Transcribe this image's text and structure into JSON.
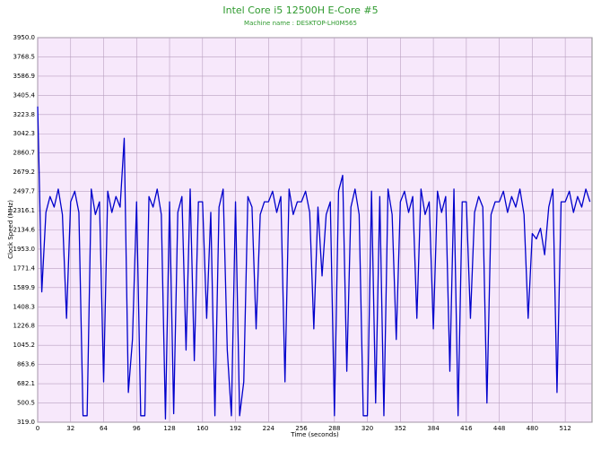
{
  "chart_data": {
    "type": "line",
    "title": "Intel Core i5 12500H E-Core #5",
    "subtitle": "Machine name : DESKTOP-LH0M565",
    "xlabel": "Time (seconds)",
    "ylabel": "Clock Speed (MHz)",
    "grid": true,
    "xlim": [
      0,
      538
    ],
    "ylim": [
      319,
      3950
    ],
    "xticks": [
      0,
      32,
      64,
      96,
      128,
      160,
      192,
      224,
      256,
      288,
      320,
      352,
      384,
      416,
      448,
      480,
      512
    ],
    "yticks": [
      {
        "value": 319,
        "label": "319.0"
      },
      500.5,
      682.1,
      863.6,
      1045.2,
      1226.8,
      1408.3,
      1589.9,
      1771.4,
      {
        "value": 1953,
        "label": "1953.0"
      },
      2134.6,
      2316.1,
      2497.7,
      2679.2,
      2860.7,
      3042.3,
      3223.8,
      3405.4,
      3586.9,
      3768.5,
      {
        "value": 3950,
        "label": "3950.0"
      }
    ],
    "x": [
      0,
      4,
      8,
      12,
      16,
      20,
      24,
      28,
      32,
      36,
      40,
      44,
      48,
      52,
      56,
      60,
      64,
      68,
      72,
      76,
      80,
      84,
      88,
      92,
      96,
      100,
      104,
      108,
      112,
      116,
      120,
      124,
      128,
      132,
      136,
      140,
      144,
      148,
      152,
      156,
      160,
      164,
      168,
      172,
      176,
      180,
      184,
      188,
      192,
      196,
      200,
      204,
      208,
      212,
      216,
      220,
      224,
      228,
      232,
      236,
      240,
      244,
      248,
      252,
      256,
      260,
      264,
      268,
      272,
      276,
      280,
      284,
      288,
      292,
      296,
      300,
      304,
      308,
      312,
      316,
      320,
      324,
      328,
      332,
      336,
      340,
      344,
      348,
      352,
      356,
      360,
      364,
      368,
      372,
      376,
      380,
      384,
      388,
      392,
      396,
      400,
      404,
      408,
      412,
      416,
      420,
      424,
      428,
      432,
      436,
      440,
      444,
      448,
      452,
      456,
      460,
      464,
      468,
      472,
      476,
      480,
      484,
      488,
      492,
      496,
      500,
      504,
      508,
      512,
      516,
      520,
      524,
      528,
      532,
      536
    ],
    "series": [
      {
        "color": "#0000cc",
        "values": [
          3300,
          1550,
          2300,
          2450,
          2350,
          2520,
          2280,
          1300,
          2400,
          2500,
          2300,
          380,
          380,
          2520,
          2280,
          2400,
          700,
          2500,
          2300,
          2450,
          2350,
          3000,
          600,
          1100,
          2400,
          380,
          380,
          2450,
          2350,
          2520,
          2280,
          350,
          2400,
          400,
          2300,
          2450,
          1000,
          2520,
          900,
          2400,
          2400,
          1300,
          2300,
          380,
          2350,
          2520,
          1000,
          380,
          2400,
          380,
          700,
          2450,
          2350,
          1200,
          2280,
          2400,
          2400,
          2500,
          2300,
          2450,
          700,
          2520,
          2280,
          2400,
          2400,
          2500,
          2300,
          1200,
          2350,
          1700,
          2280,
          2400,
          380,
          2500,
          2650,
          800,
          2350,
          2520,
          2280,
          380,
          380,
          2500,
          500,
          2450,
          380,
          2520,
          2280,
          1100,
          2400,
          2500,
          2300,
          2450,
          1300,
          2520,
          2280,
          2400,
          1200,
          2500,
          2300,
          2450,
          800,
          2520,
          380,
          2400,
          2400,
          1300,
          2300,
          2450,
          2350,
          500,
          2280,
          2400,
          2400,
          2500,
          2300,
          2450,
          2350,
          2520,
          2280,
          1300,
          2100,
          2050,
          2150,
          1900,
          2350,
          2520,
          600,
          2400,
          2400,
          2500,
          2300,
          2450,
          2350,
          2520,
          2400
        ]
      }
    ]
  }
}
